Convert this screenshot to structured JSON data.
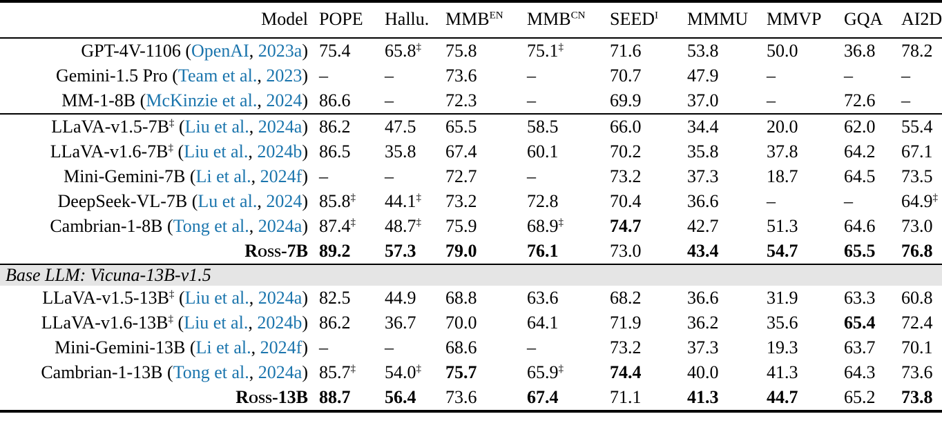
{
  "table": {
    "colors": {
      "citation_blue": "#1b75ad",
      "band_gray": "#e5e5e5",
      "rule_black": "#000000"
    },
    "dash": "–",
    "dagger": "‡",
    "columns": [
      {
        "label": "Model",
        "sup": ""
      },
      {
        "label": "POPE",
        "sup": ""
      },
      {
        "label": "Hallu.",
        "sup": ""
      },
      {
        "label": "MMB",
        "sup": "EN"
      },
      {
        "label": "MMB",
        "sup": "CN"
      },
      {
        "label": "SEED",
        "sup": "I"
      },
      {
        "label": "MMMU",
        "sup": ""
      },
      {
        "label": "MMVP",
        "sup": ""
      },
      {
        "label": "GQA",
        "sup": ""
      },
      {
        "label": "AI2D",
        "sup": ""
      }
    ],
    "sections": [
      {
        "type": "rows",
        "rule_above": false,
        "rows": [
          {
            "model": {
              "name": "GPT-4V-1106",
              "name_sup": "",
              "cite_author": "OpenAI",
              "cite_year": "2023a",
              "bold": false,
              "smallcaps": false
            },
            "cells": [
              {
                "v": "75.4"
              },
              {
                "v": "65.8",
                "sup": "‡"
              },
              {
                "v": "75.8"
              },
              {
                "v": "75.1",
                "sup": "‡"
              },
              {
                "v": "71.6"
              },
              {
                "v": "53.8"
              },
              {
                "v": "50.0"
              },
              {
                "v": "36.8"
              },
              {
                "v": "78.2"
              }
            ]
          },
          {
            "model": {
              "name": "Gemini-1.5 Pro",
              "name_sup": "",
              "cite_author": "Team et al.",
              "cite_year": "2023",
              "bold": false,
              "smallcaps": false
            },
            "cells": [
              {
                "v": "–"
              },
              {
                "v": "–"
              },
              {
                "v": "73.6"
              },
              {
                "v": "–"
              },
              {
                "v": "70.7"
              },
              {
                "v": "47.9"
              },
              {
                "v": "–"
              },
              {
                "v": "–"
              },
              {
                "v": "–"
              }
            ]
          },
          {
            "model": {
              "name": "MM-1-8B",
              "name_sup": "",
              "cite_author": "McKinzie et al.",
              "cite_year": "2024",
              "bold": false,
              "smallcaps": false
            },
            "cells": [
              {
                "v": "86.6"
              },
              {
                "v": "–"
              },
              {
                "v": "72.3"
              },
              {
                "v": "–"
              },
              {
                "v": "69.9"
              },
              {
                "v": "37.0"
              },
              {
                "v": "–"
              },
              {
                "v": "72.6"
              },
              {
                "v": "–"
              }
            ]
          }
        ]
      },
      {
        "type": "rows",
        "rule_above": true,
        "rows": [
          {
            "model": {
              "name": "LLaVA-v1.5-7B",
              "name_sup": "‡",
              "cite_author": "Liu et al.",
              "cite_year": "2024a",
              "bold": false,
              "smallcaps": false
            },
            "cells": [
              {
                "v": "86.2"
              },
              {
                "v": "47.5"
              },
              {
                "v": "65.5"
              },
              {
                "v": "58.5"
              },
              {
                "v": "66.0"
              },
              {
                "v": "34.4"
              },
              {
                "v": "20.0"
              },
              {
                "v": "62.0"
              },
              {
                "v": "55.4"
              }
            ]
          },
          {
            "model": {
              "name": "LLaVA-v1.6-7B",
              "name_sup": "‡",
              "cite_author": "Liu et al.",
              "cite_year": "2024b",
              "bold": false,
              "smallcaps": false
            },
            "cells": [
              {
                "v": "86.5"
              },
              {
                "v": "35.8"
              },
              {
                "v": "67.4"
              },
              {
                "v": "60.1"
              },
              {
                "v": "70.2"
              },
              {
                "v": "35.8"
              },
              {
                "v": "37.8"
              },
              {
                "v": "64.2"
              },
              {
                "v": "67.1"
              }
            ]
          },
          {
            "model": {
              "name": "Mini-Gemini-7B",
              "name_sup": "",
              "cite_author": "Li et al.",
              "cite_year": "2024f",
              "bold": false,
              "smallcaps": false
            },
            "cells": [
              {
                "v": "–"
              },
              {
                "v": "–"
              },
              {
                "v": "72.7"
              },
              {
                "v": "–"
              },
              {
                "v": "73.2"
              },
              {
                "v": "37.3"
              },
              {
                "v": "18.7"
              },
              {
                "v": "64.5"
              },
              {
                "v": "73.5"
              }
            ]
          },
          {
            "model": {
              "name": "DeepSeek-VL-7B",
              "name_sup": "",
              "cite_author": "Lu et al.",
              "cite_year": "2024",
              "bold": false,
              "smallcaps": false
            },
            "cells": [
              {
                "v": "85.8",
                "sup": "‡"
              },
              {
                "v": "44.1",
                "sup": "‡"
              },
              {
                "v": "73.2"
              },
              {
                "v": "72.8"
              },
              {
                "v": "70.4"
              },
              {
                "v": "36.6"
              },
              {
                "v": "–"
              },
              {
                "v": "–"
              },
              {
                "v": "64.9",
                "sup": "‡"
              }
            ]
          },
          {
            "model": {
              "name": "Cambrian-1-8B",
              "name_sup": "",
              "cite_author": "Tong et al.",
              "cite_year": "2024a",
              "bold": false,
              "smallcaps": false
            },
            "cells": [
              {
                "v": "87.4",
                "sup": "‡"
              },
              {
                "v": "48.7",
                "sup": "‡"
              },
              {
                "v": "75.9"
              },
              {
                "v": "68.9",
                "sup": "‡"
              },
              {
                "v": "74.7",
                "bold": true
              },
              {
                "v": "42.7"
              },
              {
                "v": "51.3"
              },
              {
                "v": "64.6"
              },
              {
                "v": "73.0"
              }
            ]
          },
          {
            "model": {
              "name": "Ross-7B",
              "name_sup": "",
              "cite_author": "",
              "cite_year": "",
              "bold": true,
              "smallcaps": true
            },
            "cells": [
              {
                "v": "89.2",
                "bold": true
              },
              {
                "v": "57.3",
                "bold": true
              },
              {
                "v": "79.0",
                "bold": true
              },
              {
                "v": "76.1",
                "bold": true
              },
              {
                "v": "73.0"
              },
              {
                "v": "43.4",
                "bold": true
              },
              {
                "v": "54.7",
                "bold": true
              },
              {
                "v": "65.5",
                "bold": true
              },
              {
                "v": "76.8",
                "bold": true
              }
            ]
          }
        ]
      },
      {
        "type": "band",
        "label": "Base LLM: Vicuna-13B-v1.5"
      },
      {
        "type": "rows",
        "rule_above": false,
        "rows": [
          {
            "model": {
              "name": "LLaVA-v1.5-13B",
              "name_sup": "‡",
              "cite_author": "Liu et al.",
              "cite_year": "2024a",
              "bold": false,
              "smallcaps": false
            },
            "cells": [
              {
                "v": "82.5"
              },
              {
                "v": "44.9"
              },
              {
                "v": "68.8"
              },
              {
                "v": "63.6"
              },
              {
                "v": "68.2"
              },
              {
                "v": "36.6"
              },
              {
                "v": "31.9"
              },
              {
                "v": "63.3"
              },
              {
                "v": "60.8"
              }
            ]
          },
          {
            "model": {
              "name": "LLaVA-v1.6-13B",
              "name_sup": "‡",
              "cite_author": "Liu et al.",
              "cite_year": "2024b",
              "bold": false,
              "smallcaps": false
            },
            "cells": [
              {
                "v": "86.2"
              },
              {
                "v": "36.7"
              },
              {
                "v": "70.0"
              },
              {
                "v": "64.1"
              },
              {
                "v": "71.9"
              },
              {
                "v": "36.2"
              },
              {
                "v": "35.6"
              },
              {
                "v": "65.4",
                "bold": true
              },
              {
                "v": "72.4"
              }
            ]
          },
          {
            "model": {
              "name": "Mini-Gemini-13B",
              "name_sup": "",
              "cite_author": "Li et al.",
              "cite_year": "2024f",
              "bold": false,
              "smallcaps": false
            },
            "cells": [
              {
                "v": "–"
              },
              {
                "v": "–"
              },
              {
                "v": "68.6"
              },
              {
                "v": "–"
              },
              {
                "v": "73.2"
              },
              {
                "v": "37.3"
              },
              {
                "v": "19.3"
              },
              {
                "v": "63.7"
              },
              {
                "v": "70.1"
              }
            ]
          },
          {
            "model": {
              "name": "Cambrian-1-13B",
              "name_sup": "",
              "cite_author": "Tong et al.",
              "cite_year": "2024a",
              "bold": false,
              "smallcaps": false
            },
            "cells": [
              {
                "v": "85.7",
                "sup": "‡"
              },
              {
                "v": "54.0",
                "sup": "‡"
              },
              {
                "v": "75.7",
                "bold": true
              },
              {
                "v": "65.9",
                "sup": "‡"
              },
              {
                "v": "74.4",
                "bold": true
              },
              {
                "v": "40.0"
              },
              {
                "v": "41.3"
              },
              {
                "v": "64.3"
              },
              {
                "v": "73.6"
              }
            ]
          },
          {
            "model": {
              "name": "Ross-13B",
              "name_sup": "",
              "cite_author": "",
              "cite_year": "",
              "bold": true,
              "smallcaps": true
            },
            "cells": [
              {
                "v": "88.7",
                "bold": true
              },
              {
                "v": "56.4",
                "bold": true
              },
              {
                "v": "73.6"
              },
              {
                "v": "67.4",
                "bold": true
              },
              {
                "v": "71.1"
              },
              {
                "v": "41.3",
                "bold": true
              },
              {
                "v": "44.7",
                "bold": true
              },
              {
                "v": "65.2"
              },
              {
                "v": "73.8",
                "bold": true
              }
            ]
          }
        ]
      }
    ]
  }
}
